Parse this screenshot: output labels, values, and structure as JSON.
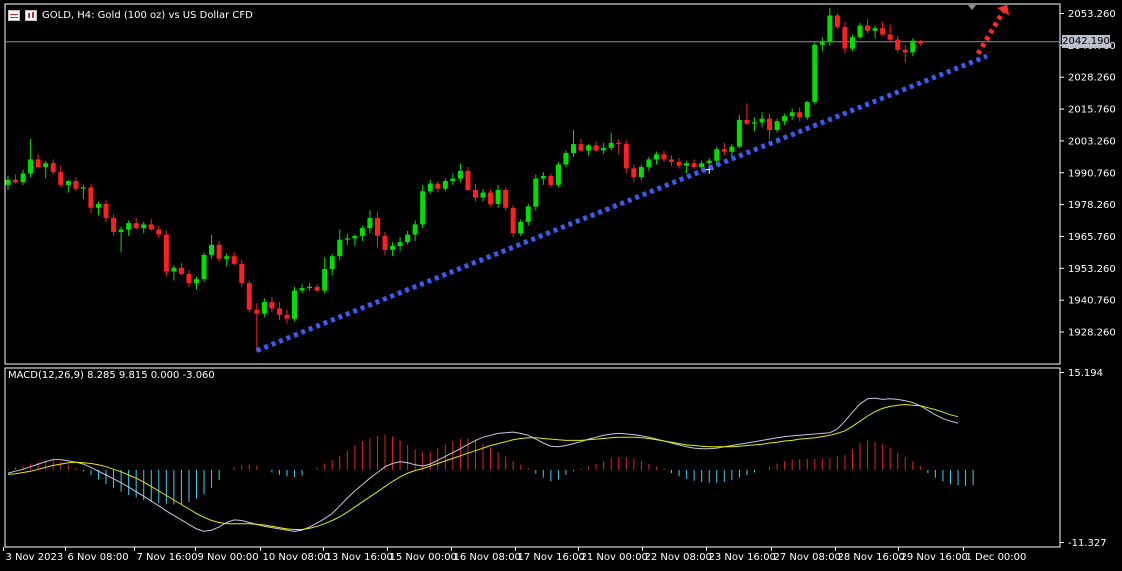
{
  "header": {
    "symbol_line": "GOLD, H4:  Gold (100 oz) vs US Dollar CFD",
    "grid_icon": "table-grid-icon",
    "chart_icon": "candlestick-chart-icon"
  },
  "macd_header": "MACD(12,26,9) 8.285 9.815 0.000 -3.060",
  "current_price_label": "2042.190",
  "colors": {
    "background": "#000000",
    "frame": "#ffffff",
    "bull_candle": "#00e000",
    "bear_candle": "#ff1f1f",
    "trendline": "#3a5cf0",
    "arrow": "#ff2a2a",
    "price_line": "#8c93a8",
    "hist_positive": "#e02424",
    "hist_negative": "#3ad0f0",
    "macd_line": "#c7c7e0",
    "signal_line": "#e8e800"
  },
  "chart_data": [
    {
      "type": "candlestick",
      "title": "GOLD, H4:  Gold (100 oz) vs US Dollar CFD",
      "ylim": [
        1922.0,
        2057.0
      ],
      "y_ticks": [
        "2053.260",
        "2040.760",
        "2028.260",
        "2015.760",
        "2003.260",
        "1990.760",
        "1978.260",
        "1965.760",
        "1953.260",
        "1940.760",
        "1928.260"
      ],
      "current_price": 2042.19,
      "candles": [
        [
          1986.0,
          1989.5,
          1984.0,
          1988.0
        ],
        [
          1988.0,
          1990.0,
          1986.5,
          1987.0
        ],
        [
          1987.0,
          1992.0,
          1986.0,
          1990.5
        ],
        [
          1990.5,
          2004.0,
          1989.0,
          1996.0
        ],
        [
          1996.0,
          1998.0,
          1992.5,
          1993.0
        ],
        [
          1993.0,
          1995.5,
          1988.5,
          1994.5
        ],
        [
          1994.5,
          1996.0,
          1990.0,
          1991.0
        ],
        [
          1991.0,
          1993.5,
          1985.0,
          1986.0
        ],
        [
          1986.0,
          1988.0,
          1983.0,
          1987.5
        ],
        [
          1987.5,
          1989.0,
          1983.5,
          1984.5
        ],
        [
          1984.5,
          1986.0,
          1980.5,
          1985.0
        ],
        [
          1985.0,
          1986.5,
          1975.0,
          1977.0
        ],
        [
          1977.0,
          1979.5,
          1974.0,
          1978.5
        ],
        [
          1978.5,
          1980.0,
          1971.5,
          1973.0
        ],
        [
          1973.0,
          1974.5,
          1966.0,
          1967.5
        ],
        [
          1967.5,
          1969.5,
          1959.5,
          1968.5
        ],
        [
          1968.5,
          1972.0,
          1966.0,
          1971.0
        ],
        [
          1971.0,
          1973.0,
          1968.5,
          1969.0
        ],
        [
          1969.0,
          1971.5,
          1967.0,
          1970.5
        ],
        [
          1970.5,
          1972.5,
          1968.0,
          1968.5
        ],
        [
          1968.5,
          1970.0,
          1965.0,
          1966.5
        ],
        [
          1966.5,
          1968.0,
          1950.0,
          1952.0
        ],
        [
          1952.0,
          1954.5,
          1948.5,
          1953.5
        ],
        [
          1953.5,
          1955.5,
          1950.5,
          1951.0
        ],
        [
          1951.0,
          1952.5,
          1946.0,
          1947.5
        ],
        [
          1947.5,
          1950.0,
          1945.0,
          1949.0
        ],
        [
          1949.0,
          1959.5,
          1948.0,
          1958.5
        ],
        [
          1958.5,
          1966.5,
          1957.0,
          1962.5
        ],
        [
          1962.5,
          1964.0,
          1956.0,
          1957.0
        ],
        [
          1957.0,
          1959.0,
          1954.0,
          1958.0
        ],
        [
          1958.0,
          1959.5,
          1954.5,
          1955.0
        ],
        [
          1955.0,
          1956.5,
          1946.0,
          1947.5
        ],
        [
          1947.5,
          1948.5,
          1936.0,
          1937.0
        ],
        [
          1937.0,
          1939.5,
          1920.5,
          1935.5
        ],
        [
          1935.5,
          1941.5,
          1934.0,
          1940.0
        ],
        [
          1940.0,
          1942.0,
          1936.0,
          1937.5
        ],
        [
          1937.5,
          1940.0,
          1933.0,
          1935.0
        ],
        [
          1935.0,
          1937.0,
          1931.5,
          1933.5
        ],
        [
          1933.5,
          1946.0,
          1932.5,
          1944.5
        ],
        [
          1944.5,
          1947.0,
          1943.5,
          1945.5
        ],
        [
          1945.5,
          1947.5,
          1944.5,
          1946.0
        ],
        [
          1946.0,
          1947.0,
          1944.0,
          1944.5
        ],
        [
          1944.5,
          1957.5,
          1943.5,
          1953.0
        ],
        [
          1953.0,
          1959.0,
          1950.5,
          1958.0
        ],
        [
          1958.0,
          1968.5,
          1956.5,
          1964.5
        ],
        [
          1964.5,
          1967.0,
          1962.5,
          1965.0
        ],
        [
          1965.0,
          1966.5,
          1962.0,
          1966.0
        ],
        [
          1966.0,
          1970.0,
          1964.0,
          1969.0
        ],
        [
          1969.0,
          1976.0,
          1967.0,
          1973.0
        ],
        [
          1973.0,
          1975.5,
          1961.5,
          1966.0
        ],
        [
          1966.0,
          1967.5,
          1958.5,
          1960.5
        ],
        [
          1960.5,
          1963.5,
          1958.0,
          1962.0
        ],
        [
          1962.0,
          1965.5,
          1960.0,
          1963.5
        ],
        [
          1963.5,
          1968.0,
          1962.5,
          1966.5
        ],
        [
          1966.5,
          1972.0,
          1964.0,
          1970.5
        ],
        [
          1970.5,
          1986.0,
          1969.0,
          1983.5
        ],
        [
          1983.5,
          1988.0,
          1982.5,
          1986.5
        ],
        [
          1986.5,
          1987.5,
          1983.0,
          1984.5
        ],
        [
          1984.5,
          1988.5,
          1983.5,
          1987.5
        ],
        [
          1987.5,
          1990.5,
          1986.0,
          1988.5
        ],
        [
          1988.5,
          1994.5,
          1987.0,
          1991.5
        ],
        [
          1991.5,
          1993.0,
          1983.5,
          1984.0
        ],
        [
          1984.0,
          1986.5,
          1979.5,
          1981.0
        ],
        [
          1981.0,
          1984.5,
          1979.5,
          1983.0
        ],
        [
          1983.0,
          1984.0,
          1977.5,
          1978.5
        ],
        [
          1978.5,
          1986.0,
          1977.0,
          1984.0
        ],
        [
          1984.0,
          1985.0,
          1976.0,
          1977.0
        ],
        [
          1977.0,
          1978.0,
          1965.5,
          1967.0
        ],
        [
          1967.0,
          1972.5,
          1966.0,
          1971.5
        ],
        [
          1971.5,
          1978.5,
          1970.0,
          1977.5
        ],
        [
          1977.5,
          1990.0,
          1976.0,
          1988.5
        ],
        [
          1988.5,
          1991.0,
          1986.0,
          1989.5
        ],
        [
          1989.5,
          1990.5,
          1985.0,
          1986.0
        ],
        [
          1986.0,
          1995.0,
          1985.0,
          1994.0
        ],
        [
          1994.0,
          1999.5,
          1993.0,
          1998.5
        ],
        [
          1998.5,
          2007.5,
          1997.0,
          2002.0
        ],
        [
          2002.0,
          2004.0,
          1999.0,
          1999.5
        ],
        [
          1999.5,
          2002.0,
          1997.5,
          2001.5
        ],
        [
          2001.5,
          2003.0,
          1999.0,
          1999.5
        ],
        [
          1999.5,
          2002.5,
          1998.0,
          2000.5
        ],
        [
          2000.5,
          2006.5,
          1999.5,
          2002.5
        ],
        [
          2002.5,
          2004.0,
          1998.0,
          2002.0
        ],
        [
          2002.0,
          2003.5,
          1990.5,
          1992.5
        ],
        [
          1992.5,
          1994.0,
          1987.0,
          1989.0
        ],
        [
          1989.0,
          1994.0,
          1988.0,
          1993.0
        ],
        [
          1993.0,
          1997.0,
          1991.5,
          1996.0
        ],
        [
          1996.0,
          1999.0,
          1994.0,
          1998.0
        ],
        [
          1998.0,
          1999.5,
          1995.0,
          1996.0
        ],
        [
          1996.0,
          1997.5,
          1993.5,
          1995.0
        ],
        [
          1995.0,
          1996.5,
          1992.5,
          1993.5
        ],
        [
          1993.5,
          1995.5,
          1990.5,
          1994.5
        ],
        [
          1994.5,
          1996.0,
          1992.5,
          1993.0
        ],
        [
          1993.0,
          1995.5,
          1991.5,
          1994.5
        ],
        [
          1994.5,
          1996.5,
          1993.0,
          1995.5
        ],
        [
          1995.5,
          2001.0,
          1993.5,
          2000.0
        ],
        [
          2000.0,
          2002.5,
          1997.5,
          1999.0
        ],
        [
          1999.0,
          2002.0,
          1997.0,
          2001.0
        ],
        [
          2001.0,
          2013.5,
          2000.5,
          2011.5
        ],
        [
          2011.5,
          2018.0,
          2009.5,
          2010.0
        ],
        [
          2010.0,
          2012.5,
          2007.0,
          2010.5
        ],
        [
          2010.5,
          2014.5,
          2008.5,
          2012.0
        ],
        [
          2012.0,
          2014.0,
          2004.0,
          2007.5
        ],
        [
          2007.5,
          2012.0,
          2006.5,
          2011.0
        ],
        [
          2011.0,
          2014.0,
          2009.5,
          2013.0
        ],
        [
          2013.0,
          2016.0,
          2011.5,
          2014.5
        ],
        [
          2014.5,
          2016.5,
          2011.0,
          2012.5
        ],
        [
          2012.5,
          2019.0,
          2011.5,
          2018.5
        ],
        [
          2018.5,
          2042.0,
          2017.5,
          2041.0
        ],
        [
          2041.0,
          2044.0,
          2038.5,
          2042.0
        ],
        [
          2042.0,
          2055.5,
          2040.5,
          2052.5
        ],
        [
          2052.5,
          2053.5,
          2047.0,
          2048.0
        ],
        [
          2048.0,
          2050.0,
          2037.5,
          2039.5
        ],
        [
          2039.5,
          2045.0,
          2038.5,
          2044.0
        ],
        [
          2044.0,
          2049.5,
          2043.5,
          2048.5
        ],
        [
          2048.5,
          2051.0,
          2045.5,
          2046.5
        ],
        [
          2046.5,
          2048.5,
          2043.5,
          2047.5
        ],
        [
          2047.5,
          2050.0,
          2044.5,
          2045.0
        ],
        [
          2045.0,
          2049.0,
          2042.5,
          2043.0
        ],
        [
          2043.0,
          2044.5,
          2038.0,
          2039.0
        ],
        [
          2039.0,
          2041.0,
          2034.0,
          2038.0
        ],
        [
          2038.0,
          2043.5,
          2036.5,
          2042.5
        ],
        [
          2042.5,
          2043.0,
          2040.5,
          2041.5
        ]
      ],
      "x_ticks": [
        "3 Nov 2023",
        "6 Nov 08:00",
        "7 Nov 16:00",
        "9 Nov 00:00",
        "10 Nov 08:00",
        "13 Nov 16:00",
        "15 Nov 00:00",
        "16 Nov 08:00",
        "17 Nov 16:00",
        "21 Nov 00:00",
        "22 Nov 08:00",
        "23 Nov 16:00",
        "27 Nov 08:00",
        "28 Nov 16:00",
        "29 Nov 16:00",
        "1 Dec 00:00"
      ],
      "trendline": {
        "from": {
          "candle": 33,
          "price": 1921.0
        },
        "to": {
          "candle": 128,
          "price": 2035.0
        }
      },
      "arrow": {
        "from": {
          "candle": 126,
          "price": 2037.5
        },
        "to": {
          "candle": 128,
          "price": 2054.0
        }
      }
    },
    {
      "type": "macd",
      "title": "MACD(12,26,9) 8.285 9.815 0.000 -3.060",
      "ylim": [
        -11.327,
        15.194
      ],
      "y_ticks": [
        "15.194",
        "-11.327"
      ],
      "histogram": [
        0.2,
        0.4,
        0.6,
        1.0,
        1.2,
        1.4,
        1.5,
        1.3,
        0.8,
        0.3,
        -0.2,
        -0.8,
        -1.5,
        -2.2,
        -2.8,
        -3.4,
        -3.9,
        -4.3,
        -4.7,
        -5.0,
        -5.2,
        -5.3,
        -5.4,
        -5.3,
        -5.0,
        -4.5,
        -3.8,
        -2.8,
        -1.6,
        0.0,
        0.4,
        0.8,
        0.9,
        0.7,
        0.0,
        -0.4,
        -0.8,
        -1.0,
        -1.1,
        -0.9,
        0.0,
        0.4,
        1.0,
        1.5,
        2.2,
        3.0,
        3.8,
        4.5,
        5.0,
        5.3,
        5.5,
        5.2,
        4.6,
        3.9,
        3.2,
        2.8,
        2.9,
        3.4,
        4.0,
        4.5,
        4.8,
        4.9,
        4.6,
        4.1,
        3.5,
        2.8,
        2.1,
        1.4,
        0.8,
        0.3,
        -0.6,
        -1.2,
        -1.8,
        -1.5,
        -0.8,
        -0.2,
        0.2,
        0.5,
        0.9,
        1.4,
        1.8,
        2.0,
        2.0,
        1.8,
        1.4,
        0.9,
        0.5,
        0.2,
        -0.5,
        -1.0,
        -1.4,
        -1.7,
        -1.9,
        -2.0,
        -2.0,
        -1.9,
        -1.6,
        -1.2,
        -0.8,
        -0.4,
        0.0,
        0.5,
        1.0,
        1.4,
        1.6,
        1.7,
        1.7,
        1.7,
        1.8,
        1.9,
        2.1,
        2.3,
        3.2,
        4.2,
        4.6,
        4.4,
        4.0,
        3.4,
        2.7,
        2.0,
        1.3,
        0.6,
        -0.5,
        -1.2,
        -1.8,
        -2.2,
        -2.4,
        -2.5,
        -2.4
      ],
      "macd_line": [
        -0.5,
        -0.2,
        0.1,
        0.5,
        0.9,
        1.3,
        1.6,
        1.6,
        1.4,
        1.2,
        0.9,
        0.4,
        -0.2,
        -0.8,
        -1.4,
        -2.0,
        -2.7,
        -3.4,
        -4.1,
        -4.9,
        -5.6,
        -6.4,
        -7.1,
        -7.8,
        -8.5,
        -9.2,
        -9.6,
        -9.4,
        -8.9,
        -8.2,
        -7.8,
        -7.9,
        -8.2,
        -8.5,
        -8.8,
        -9.0,
        -9.2,
        -9.4,
        -9.6,
        -9.4,
        -8.9,
        -8.3,
        -7.6,
        -6.8,
        -5.6,
        -4.4,
        -3.3,
        -2.3,
        -1.3,
        -0.4,
        0.5,
        1.0,
        1.3,
        1.1,
        0.8,
        0.6,
        0.9,
        1.5,
        2.1,
        2.7,
        3.3,
        4.0,
        4.6,
        5.1,
        5.4,
        5.7,
        5.8,
        5.9,
        5.7,
        5.4,
        4.8,
        4.2,
        3.7,
        3.6,
        3.8,
        4.1,
        4.4,
        4.8,
        5.1,
        5.4,
        5.6,
        5.7,
        5.6,
        5.5,
        5.3,
        5.1,
        4.8,
        4.5,
        4.2,
        3.9,
        3.6,
        3.4,
        3.3,
        3.3,
        3.4,
        3.6,
        3.8,
        4.0,
        4.2,
        4.4,
        4.6,
        4.8,
        5.0,
        5.2,
        5.3,
        5.4,
        5.5,
        5.6,
        5.7,
        5.8,
        6.4,
        7.6,
        9.0,
        10.3,
        11.1,
        11.2,
        11.0,
        11.1,
        11.0,
        10.8,
        10.5,
        10.0,
        9.3,
        8.6,
        8.0,
        7.6,
        7.3
      ],
      "signal_line": [
        -0.7,
        -0.6,
        -0.4,
        -0.2,
        0.1,
        0.4,
        0.7,
        0.9,
        1.1,
        1.2,
        1.1,
        1.0,
        0.8,
        0.5,
        0.1,
        -0.3,
        -0.8,
        -1.3,
        -1.9,
        -2.6,
        -3.3,
        -4.0,
        -4.7,
        -5.4,
        -6.1,
        -6.8,
        -7.4,
        -7.9,
        -8.2,
        -8.4,
        -8.4,
        -8.4,
        -8.4,
        -8.5,
        -8.6,
        -8.8,
        -9.0,
        -9.2,
        -9.3,
        -9.3,
        -9.1,
        -8.8,
        -8.4,
        -7.9,
        -7.3,
        -6.6,
        -5.8,
        -5.0,
        -4.2,
        -3.4,
        -2.6,
        -1.8,
        -1.1,
        -0.5,
        -0.1,
        0.2,
        0.6,
        1.0,
        1.4,
        1.8,
        2.2,
        2.6,
        3.0,
        3.4,
        3.8,
        4.1,
        4.4,
        4.7,
        4.9,
        5.0,
        5.0,
        4.9,
        4.8,
        4.7,
        4.6,
        4.6,
        4.6,
        4.7,
        4.8,
        4.9,
        5.0,
        5.1,
        5.1,
        5.1,
        5.0,
        4.9,
        4.7,
        4.5,
        4.3,
        4.1,
        3.9,
        3.8,
        3.7,
        3.6,
        3.6,
        3.6,
        3.6,
        3.7,
        3.8,
        3.9,
        4.0,
        4.2,
        4.3,
        4.5,
        4.6,
        4.8,
        4.9,
        5.0,
        5.2,
        5.4,
        5.7,
        6.1,
        6.8,
        7.6,
        8.4,
        9.1,
        9.6,
        9.9,
        10.1,
        10.2,
        10.1,
        10.0,
        9.7,
        9.4,
        9.0,
        8.6,
        8.3
      ]
    }
  ]
}
